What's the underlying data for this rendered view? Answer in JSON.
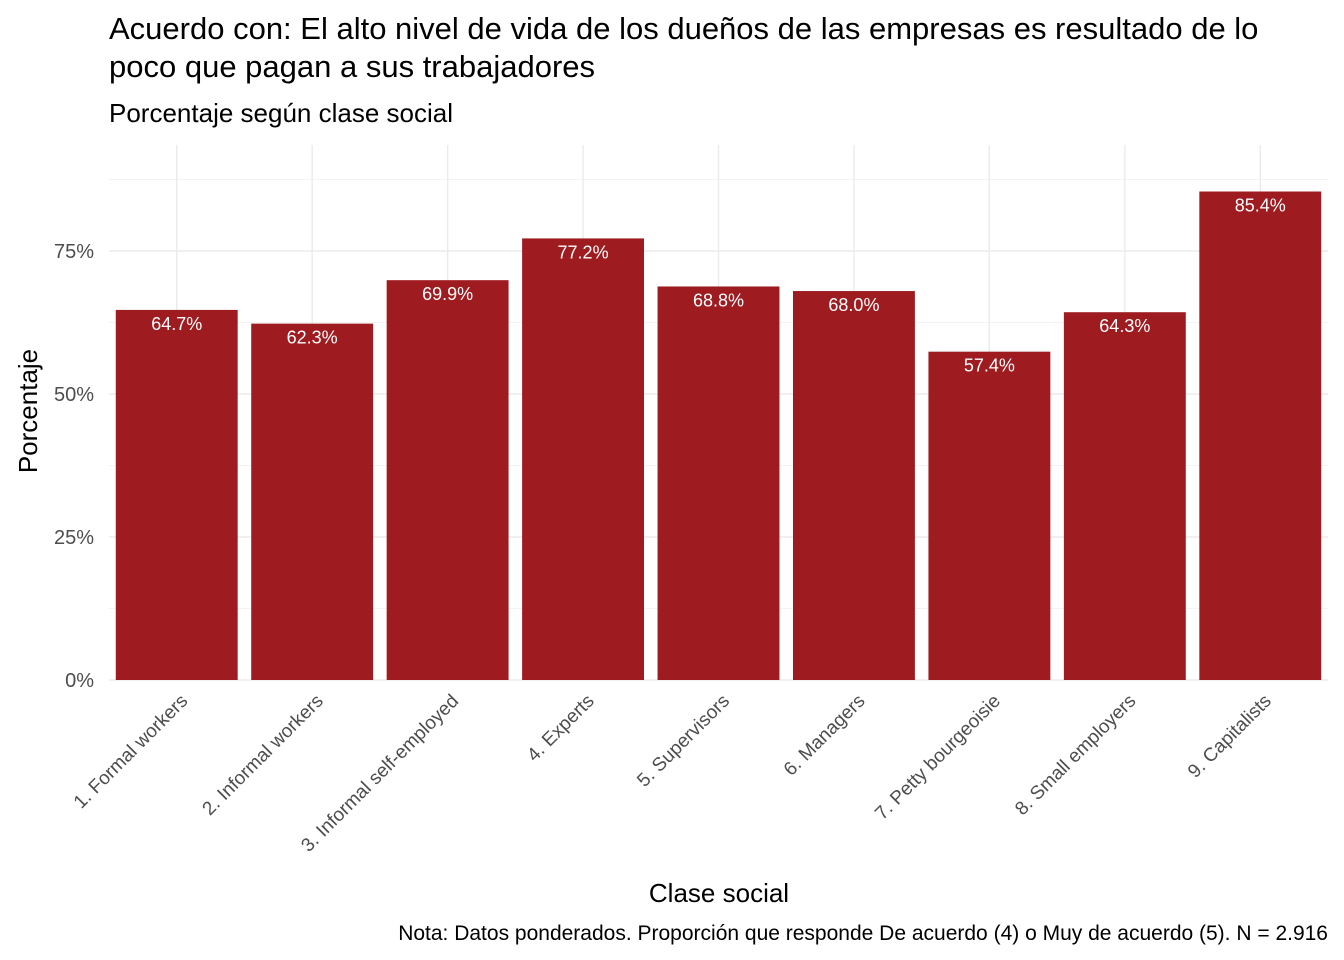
{
  "chart_data": {
    "type": "bar",
    "title": "Acuerdo con: El alto nivel de vida de los dueños de las empresas es resultado de lo poco que pagan a sus trabajadores",
    "subtitle": "Porcentaje según clase social",
    "xlabel": "Clase social",
    "ylabel": "Porcentaje",
    "caption": "Nota: Datos ponderados. Proporción que responde De acuerdo (4) o Muy de acuerdo (5). N = 2.916",
    "categories": [
      "1. Formal workers",
      "2. Informal workers",
      "3. Informal self-employed",
      "4. Experts",
      "5. Supervisors",
      "6. Managers",
      "7. Petty bourgeoisie",
      "8. Small employers",
      "9. Capitalists"
    ],
    "values": [
      64.7,
      62.3,
      69.9,
      77.2,
      68.8,
      68.0,
      57.4,
      64.3,
      85.4
    ],
    "value_labels": [
      "64.7%",
      "62.3%",
      "69.9%",
      "77.2%",
      "68.8%",
      "68.0%",
      "57.4%",
      "64.3%",
      "85.4%"
    ],
    "ylim": [
      0,
      90
    ],
    "y_ticks": [
      0,
      25,
      50,
      75
    ],
    "y_tick_labels": [
      "0%",
      "25%",
      "50%",
      "75%"
    ],
    "grid": true,
    "legend": "none",
    "bar_color": "#9e1b20",
    "label_color": "#ffffff"
  }
}
